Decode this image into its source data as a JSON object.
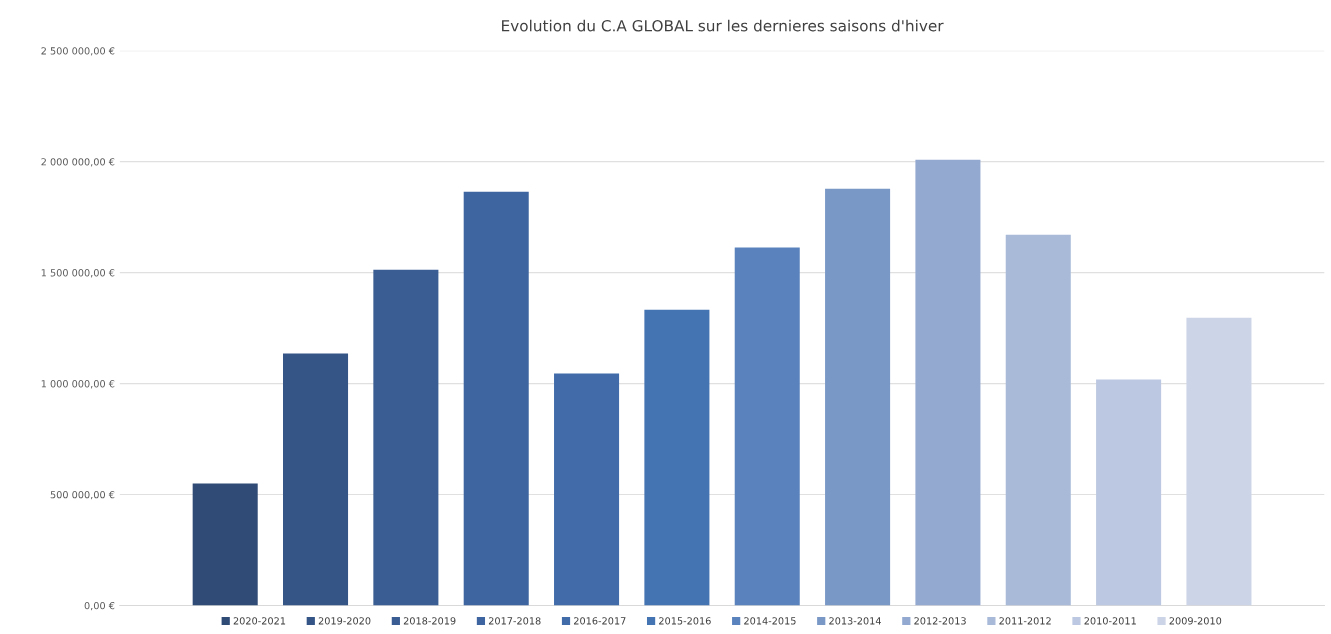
{
  "chart_data": {
    "type": "bar",
    "title": "Evolution du C.A GLOBAL sur les dernieres saisons d'hiver",
    "categories": [
      null
    ],
    "series": [
      {
        "name": "2020-2021",
        "color": "#2f4b76",
        "values": [
          550000
        ]
      },
      {
        "name": "2019-2020",
        "color": "#355587",
        "values": [
          1135000
        ]
      },
      {
        "name": "2018-2019",
        "color": "#3a5d93",
        "values": [
          1513000
        ]
      },
      {
        "name": "2017-2018",
        "color": "#3e65a0",
        "values": [
          1865000
        ]
      },
      {
        "name": "2016-2017",
        "color": "#416ca9",
        "values": [
          1045000
        ]
      },
      {
        "name": "2015-2016",
        "color": "#4574b3",
        "values": [
          1333000
        ]
      },
      {
        "name": "2014-2015",
        "color": "#5a83bd",
        "values": [
          1613000
        ]
      },
      {
        "name": "2013-2014",
        "color": "#7a98c6",
        "values": [
          1878000
        ]
      },
      {
        "name": "2012-2013",
        "color": "#93a9d0",
        "values": [
          2009000
        ]
      },
      {
        "name": "2011-2012",
        "color": "#a9bad9",
        "values": [
          1671000
        ]
      },
      {
        "name": "2010-2011",
        "color": "#bcc8e1",
        "values": [
          1018000
        ]
      },
      {
        "name": "2009-2010",
        "color": "#ccd4e7",
        "values": [
          1297000
        ]
      }
    ],
    "ylim": [
      0,
      2500000
    ],
    "yticks": [
      {
        "value": 0,
        "label": "0,00 €"
      },
      {
        "value": 500000,
        "label": "500 000,00 €"
      },
      {
        "value": 1000000,
        "label": "1 000 000,00 €"
      },
      {
        "value": 1500000,
        "label": "1 500 000,00 €"
      },
      {
        "value": 2000000,
        "label": "2 000 000,00 €"
      },
      {
        "value": 2500000,
        "label": "2 500 000,00 €"
      }
    ],
    "grid": "y",
    "legend": "bottom"
  }
}
